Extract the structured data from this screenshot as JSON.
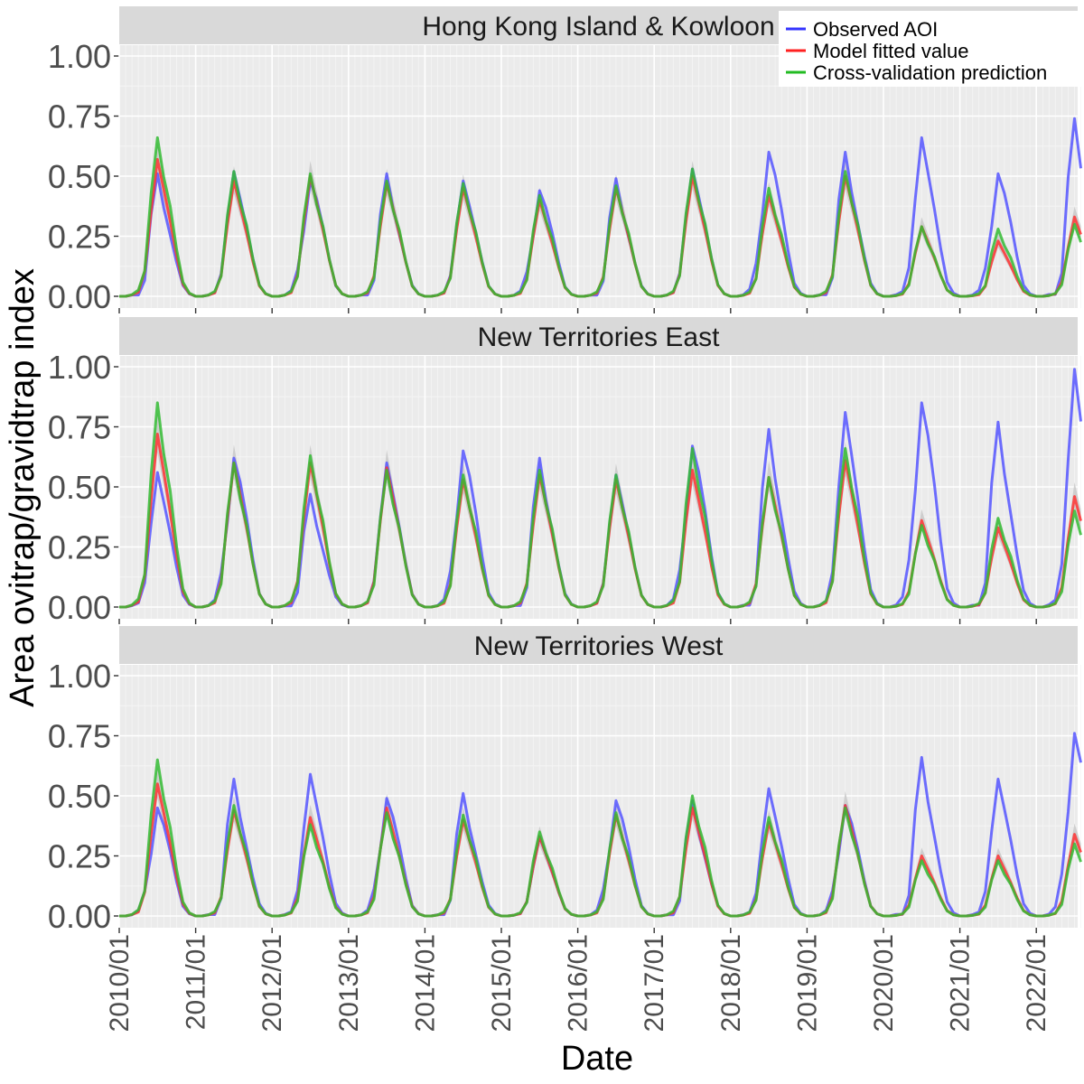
{
  "chart_data": {
    "type": "line",
    "xlabel": "Date",
    "ylabel": "Area ovitrap/gravidtrap index",
    "ylim": [
      0,
      1.0
    ],
    "y_ticks": [
      0.0,
      0.25,
      0.5,
      0.75,
      1.0
    ],
    "y_tick_labels": [
      "0.00",
      "0.25",
      "0.50",
      "0.75",
      "1.00"
    ],
    "x_tick_labels": [
      "2010/01",
      "2011/01",
      "2012/01",
      "2013/01",
      "2014/01",
      "2015/01",
      "2016/01",
      "2017/01",
      "2018/01",
      "2019/01",
      "2020/01",
      "2021/01",
      "2022/01"
    ],
    "x_range": [
      "2010/01",
      "2022/08"
    ],
    "grid": true,
    "legend_position": "top-right",
    "legend": [
      {
        "label": "Observed AOI",
        "color": "#3333ff"
      },
      {
        "label": "Model fitted value",
        "color": "#ff2020"
      },
      {
        "label": "Cross-validation prediction",
        "color": "#22bb22"
      }
    ],
    "panels": [
      {
        "title": "Hong Kong Island & Kowloon",
        "peaks": {
          "observed": [
            0.51,
            0.52,
            0.48,
            0.51,
            0.48,
            0.44,
            0.49,
            0.53,
            0.6,
            0.6,
            0.66,
            0.51,
            0.74
          ],
          "fitted": [
            0.57,
            0.48,
            0.5,
            0.47,
            0.45,
            0.4,
            0.45,
            0.5,
            0.42,
            0.5,
            0.29,
            0.23,
            0.33
          ],
          "cv": [
            0.66,
            0.52,
            0.51,
            0.48,
            0.47,
            0.42,
            0.46,
            0.53,
            0.45,
            0.52,
            0.29,
            0.28,
            0.3
          ]
        }
      },
      {
        "title": "New Territories East",
        "peaks": {
          "observed": [
            0.56,
            0.62,
            0.47,
            0.6,
            0.65,
            0.62,
            0.55,
            0.67,
            0.74,
            0.81,
            0.85,
            0.77,
            0.99
          ],
          "fitted": [
            0.72,
            0.6,
            0.6,
            0.58,
            0.53,
            0.55,
            0.53,
            0.57,
            0.54,
            0.61,
            0.36,
            0.33,
            0.46
          ],
          "cv": [
            0.85,
            0.6,
            0.63,
            0.57,
            0.55,
            0.57,
            0.55,
            0.66,
            0.54,
            0.66,
            0.34,
            0.37,
            0.4
          ]
        }
      },
      {
        "title": "New Territories West",
        "peaks": {
          "observed": [
            0.45,
            0.57,
            0.59,
            0.49,
            0.51,
            0.33,
            0.48,
            0.48,
            0.53,
            0.46,
            0.66,
            0.57,
            0.76
          ],
          "fitted": [
            0.55,
            0.44,
            0.41,
            0.45,
            0.4,
            0.33,
            0.42,
            0.45,
            0.39,
            0.46,
            0.25,
            0.25,
            0.34
          ],
          "cv": [
            0.65,
            0.46,
            0.38,
            0.43,
            0.42,
            0.35,
            0.43,
            0.5,
            0.41,
            0.45,
            0.23,
            0.23,
            0.3
          ]
        }
      }
    ]
  }
}
